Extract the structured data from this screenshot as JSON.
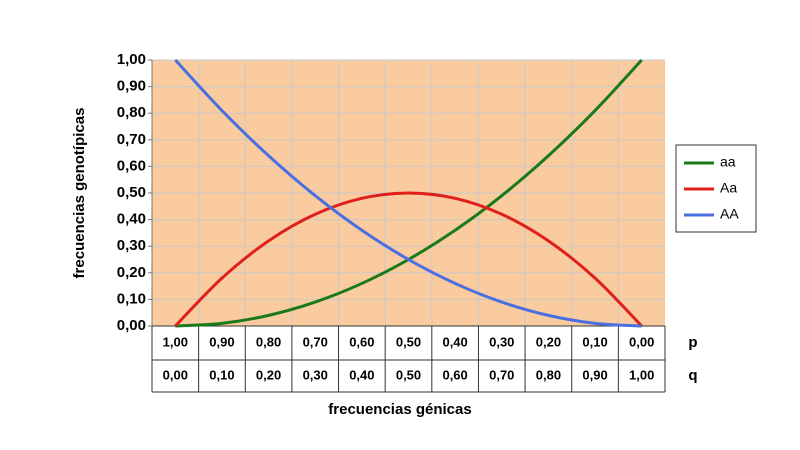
{
  "chart_data": {
    "type": "line",
    "x_title": "frecuencias génicas",
    "y_title": "frecuencias genotípicas",
    "row_labels": [
      "p",
      "q"
    ],
    "categories": [
      "1,00",
      "0,90",
      "0,80",
      "0,70",
      "0,60",
      "0,50",
      "0,40",
      "0,30",
      "0,20",
      "0,10",
      "0,00"
    ],
    "categories2": [
      "0,00",
      "0,10",
      "0,20",
      "0,30",
      "0,40",
      "0,50",
      "0,60",
      "0,70",
      "0,80",
      "0,90",
      "1,00"
    ],
    "series": [
      {
        "name": "aa",
        "color": "#1a7a1a",
        "values": [
          0,
          0.01,
          0.04,
          0.09,
          0.16,
          0.25,
          0.36,
          0.49,
          0.64,
          0.81,
          1
        ]
      },
      {
        "name": "Aa",
        "color": "#e0201a",
        "values": [
          0,
          0.18,
          0.32,
          0.42,
          0.48,
          0.5,
          0.48,
          0.42,
          0.32,
          0.18,
          0
        ]
      },
      {
        "name": "AA",
        "color": "#4a6fe0",
        "values": [
          1,
          0.81,
          0.64,
          0.49,
          0.36,
          0.25,
          0.16,
          0.09,
          0.04,
          0.01,
          0
        ]
      }
    ],
    "ylim": [
      0,
      1
    ],
    "yticks": [
      {
        "value": 0,
        "label": "0,00"
      },
      {
        "value": 0.1,
        "label": "0,10"
      },
      {
        "value": 0.2,
        "label": "0,20"
      },
      {
        "value": 0.3,
        "label": "0,30"
      },
      {
        "value": 0.4,
        "label": "0,40"
      },
      {
        "value": 0.5,
        "label": "0,50"
      },
      {
        "value": 0.6,
        "label": "0,60"
      },
      {
        "value": 0.7,
        "label": "0,70"
      },
      {
        "value": 0.8,
        "label": "0,80"
      },
      {
        "value": 0.9,
        "label": "0,90"
      },
      {
        "value": 1,
        "label": "1,00"
      }
    ],
    "grid": true,
    "legend": "right",
    "background": "#facb9f"
  }
}
